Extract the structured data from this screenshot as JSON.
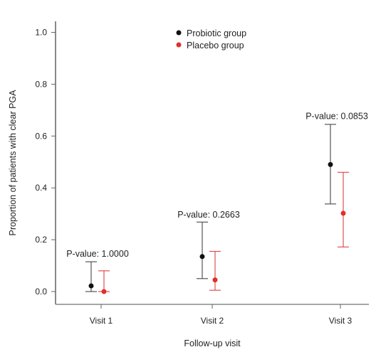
{
  "chart_data": {
    "type": "scatter",
    "title": "",
    "xlabel": "Follow-up visit",
    "ylabel": "Proportion of patients with clear PGA",
    "categories": [
      "Visit 1",
      "Visit 2",
      "Visit 3"
    ],
    "ylim": [
      0,
      1.0
    ],
    "yticks": [
      "0.0",
      "0.2",
      "0.4",
      "0.6",
      "0.8",
      "1.0"
    ],
    "grid": false,
    "legend_position": "top-center",
    "series": [
      {
        "name": "Probiotic group",
        "color": "#111111",
        "errorbar_color": "#555555",
        "values": [
          0.022,
          0.135,
          0.49
        ],
        "lower": [
          0.0,
          0.05,
          0.338
        ],
        "upper": [
          0.115,
          0.268,
          0.645
        ]
      },
      {
        "name": "Placebo group",
        "color": "#e0302a",
        "errorbar_color": "#e05050",
        "values": [
          0.0,
          0.045,
          0.302
        ],
        "lower": [
          0.0,
          0.005,
          0.172
        ],
        "upper": [
          0.08,
          0.155,
          0.46
        ]
      }
    ],
    "annotations": [
      {
        "text": "P-value: 1.0000",
        "category": "Visit 1",
        "y": 0.135
      },
      {
        "text": "P-value: 0.2663",
        "category": "Visit 2",
        "y": 0.285
      },
      {
        "text": "P-value: 0.0853",
        "category": "Visit 3",
        "y": 0.665
      }
    ]
  }
}
